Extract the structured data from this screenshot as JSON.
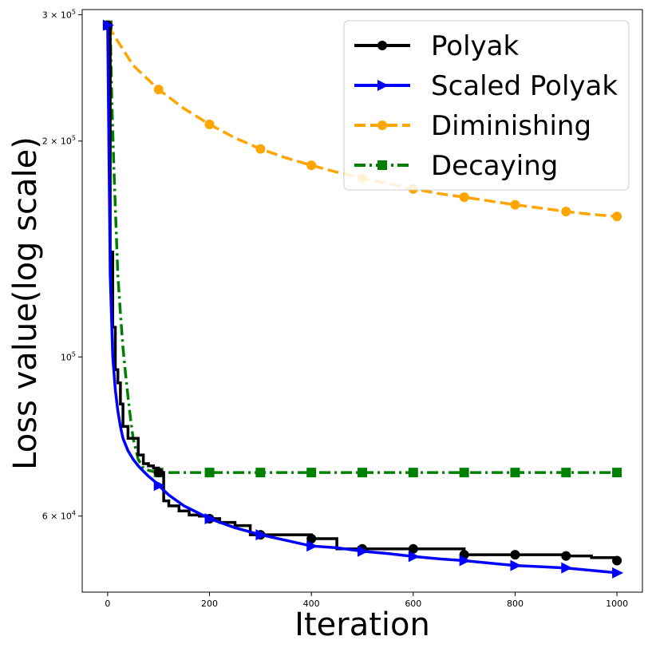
{
  "chart_data": {
    "type": "line",
    "xlabel": "Iteration",
    "ylabel": "Loss value(log scale)",
    "xlim": [
      -50,
      1050
    ],
    "ylim": [
      47000,
      305000
    ],
    "yscale": "log",
    "x_ticks": [
      0,
      200,
      400,
      600,
      800,
      1000
    ],
    "x_tick_labels": [
      "0",
      "200",
      "400",
      "600",
      "800",
      "1000"
    ],
    "y_ticks": [
      {
        "value": 300000,
        "mantissa": "3",
        "exponent": "5"
      },
      {
        "value": 200000,
        "mantissa": "2",
        "exponent": "5"
      },
      {
        "value": 100000,
        "mantissa": "",
        "exponent": "5"
      },
      {
        "value": 60000,
        "mantissa": "6",
        "exponent": "4"
      }
    ],
    "y_tick_base": "10",
    "y_tick_times": "×",
    "legend_position": "top-right",
    "series": [
      {
        "name": "Polyak",
        "color": "#000000",
        "line_style": "solid",
        "marker": "circle",
        "step": true,
        "x": [
          0,
          5,
          10,
          15,
          20,
          25,
          30,
          40,
          50,
          60,
          70,
          80,
          90,
          100,
          110,
          120,
          140,
          160,
          180,
          200,
          220,
          250,
          280,
          300,
          350,
          400,
          450,
          500,
          550,
          600,
          650,
          700,
          750,
          800,
          850,
          900,
          950,
          1000
        ],
        "y": [
          290000,
          140000,
          110000,
          96000,
          92000,
          86000,
          80000,
          77000,
          77000,
          73000,
          71000,
          70500,
          70000,
          69000,
          63000,
          62000,
          61000,
          60200,
          60000,
          59500,
          58800,
          58200,
          56500,
          56500,
          56500,
          55800,
          54000,
          54000,
          54000,
          54000,
          54000,
          53000,
          53000,
          53000,
          53000,
          52800,
          52500,
          52000
        ],
        "markers_x": [
          0,
          100,
          200,
          300,
          400,
          500,
          600,
          700,
          800,
          900,
          1000
        ],
        "markers_y": [
          290000,
          69000,
          59500,
          56500,
          55800,
          54000,
          54000,
          53000,
          53000,
          52800,
          52000
        ]
      },
      {
        "name": "Scaled Polyak",
        "color": "#0000ff",
        "line_style": "solid",
        "marker": "triangle-right",
        "step": false,
        "x": [
          0,
          5,
          10,
          15,
          20,
          25,
          30,
          40,
          50,
          60,
          70,
          80,
          90,
          100,
          120,
          150,
          180,
          200,
          250,
          300,
          350,
          400,
          450,
          500,
          550,
          600,
          650,
          700,
          750,
          800,
          850,
          900,
          950,
          1000
        ],
        "y": [
          290000,
          130000,
          100000,
          90000,
          84000,
          80000,
          77000,
          74000,
          72000,
          70500,
          69300,
          68200,
          67300,
          66200,
          64200,
          62000,
          60500,
          59500,
          57800,
          56500,
          55500,
          54500,
          54200,
          53600,
          53200,
          52700,
          52300,
          52000,
          51600,
          51200,
          51000,
          50800,
          50400,
          50000
        ],
        "markers_x": [
          0,
          100,
          200,
          300,
          400,
          500,
          600,
          700,
          800,
          900,
          1000
        ],
        "markers_y": [
          290000,
          66200,
          59500,
          56500,
          54500,
          53600,
          52700,
          52000,
          51200,
          50800,
          50000
        ]
      },
      {
        "name": "Diminishing",
        "color": "#ffa500",
        "line_style": "dashed",
        "marker": "circle",
        "step": false,
        "x": [
          0,
          50,
          100,
          150,
          200,
          250,
          300,
          350,
          400,
          450,
          500,
          550,
          600,
          650,
          700,
          750,
          800,
          850,
          900,
          950,
          1000
        ],
        "y": [
          290000,
          255000,
          236000,
          222000,
          211000,
          202000,
          195000,
          189500,
          185000,
          181000,
          177500,
          174500,
          171500,
          169000,
          167000,
          165000,
          163000,
          161300,
          159500,
          158000,
          157000
        ],
        "markers_x": [
          0,
          100,
          200,
          300,
          400,
          500,
          600,
          700,
          800,
          900,
          1000
        ],
        "markers_y": [
          290000,
          236000,
          211000,
          195000,
          185000,
          177500,
          171500,
          167000,
          163000,
          159500,
          157000
        ]
      },
      {
        "name": "Decaying",
        "color": "#008000",
        "line_style": "dashdot",
        "marker": "square",
        "step": false,
        "x": [
          0,
          5,
          8,
          12,
          16,
          20,
          25,
          30,
          35,
          40,
          45,
          50,
          60,
          70,
          80,
          90,
          100,
          200,
          300,
          400,
          500,
          600,
          700,
          800,
          900,
          1000
        ],
        "y": [
          290000,
          290000,
          230000,
          185000,
          155000,
          130000,
          115000,
          103000,
          95000,
          88000,
          82000,
          77000,
          72000,
          70000,
          69500,
          69200,
          69000,
          69000,
          69000,
          69000,
          69000,
          69000,
          69000,
          69000,
          69000,
          69000
        ],
        "markers_x": [
          0,
          100,
          200,
          300,
          400,
          500,
          600,
          700,
          800,
          900,
          1000
        ],
        "markers_y": [
          290000,
          69000,
          69000,
          69000,
          69000,
          69000,
          69000,
          69000,
          69000,
          69000,
          69000
        ]
      }
    ]
  }
}
